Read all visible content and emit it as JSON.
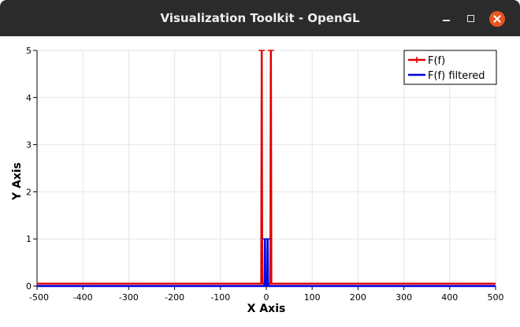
{
  "window": {
    "title": "Visualization Toolkit - OpenGL"
  },
  "colors": {
    "titlebar": "#2b2b2b",
    "close_button": "#e95420",
    "series_raw": "#e00000",
    "series_filtered": "#0000e0",
    "grid": "#e6e6e6"
  },
  "chart_data": {
    "type": "line",
    "title": "",
    "xlabel": "X Axis",
    "ylabel": "Y Axis",
    "xlim": [
      -500,
      500
    ],
    "ylim": [
      0,
      5
    ],
    "x_ticks": [
      "-500",
      "-400",
      "-300",
      "-200",
      "-100",
      "0",
      "100",
      "200",
      "300",
      "400",
      "500"
    ],
    "y_ticks": [
      "0",
      "1",
      "2",
      "3",
      "4",
      "5"
    ],
    "grid": true,
    "legend_position": "top-right",
    "series": [
      {
        "name": "F(f)",
        "color": "#e00000",
        "marker": "plus",
        "points": [
          [
            -500,
            0.05
          ],
          [
            -11,
            0.05
          ],
          [
            -10,
            5
          ],
          [
            -9,
            0.05
          ],
          [
            9,
            0.05
          ],
          [
            10,
            5
          ],
          [
            11,
            0.05
          ],
          [
            500,
            0.05
          ]
        ]
      },
      {
        "name": "F(f) filtered",
        "color": "#0000e0",
        "marker": "none",
        "points": [
          [
            -500,
            0.0
          ],
          [
            -4,
            0.0
          ],
          [
            -3,
            1.0
          ],
          [
            -2,
            0.0
          ],
          [
            2,
            0.0
          ],
          [
            3,
            1.0
          ],
          [
            4,
            0.0
          ],
          [
            500,
            0.0
          ]
        ]
      }
    ]
  }
}
